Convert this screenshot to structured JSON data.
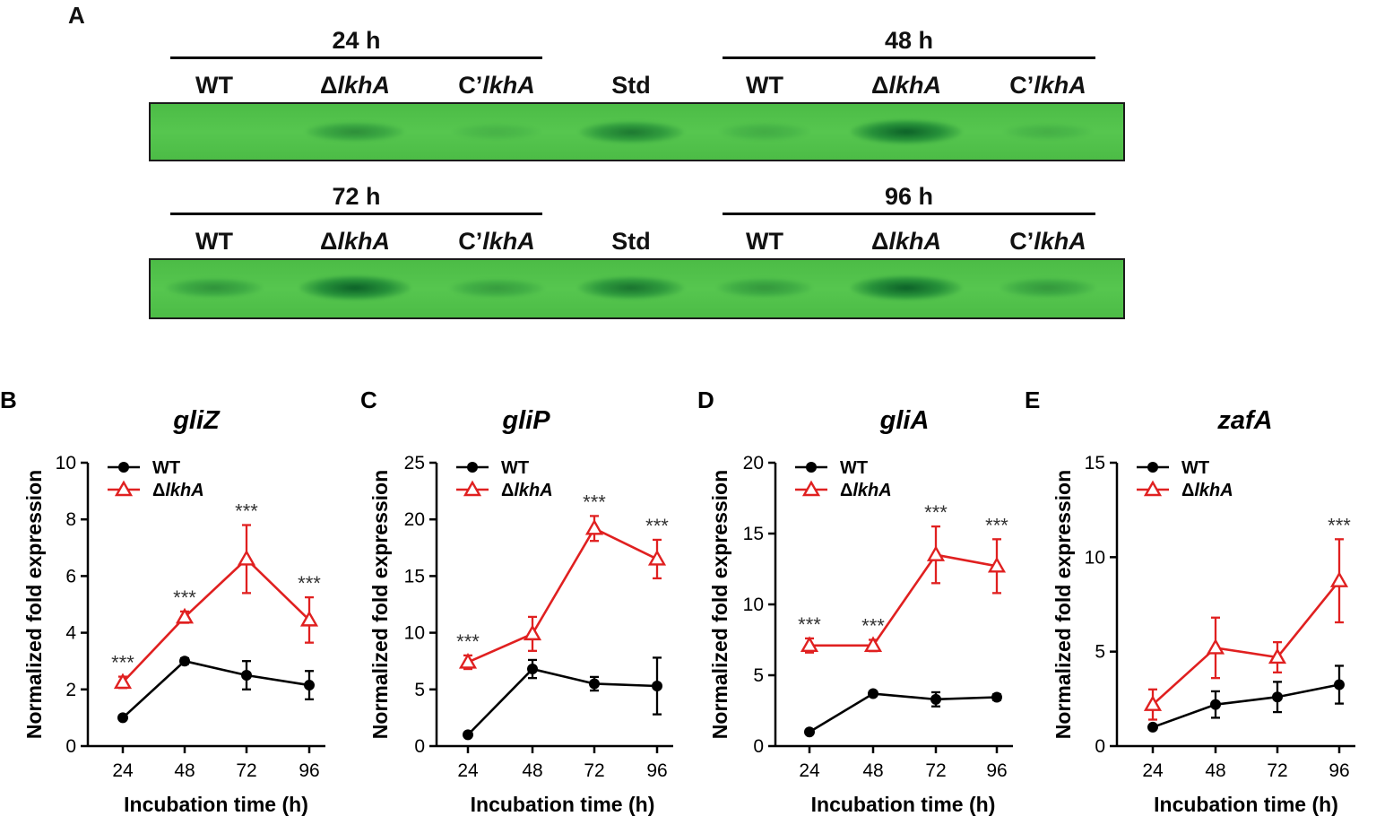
{
  "panel_a": {
    "letter": "A",
    "gels": [
      {
        "groups": [
          {
            "label": "24 h",
            "lanes": [
              "WT",
              "ΔlkhA",
              "C’lkhA"
            ]
          },
          {
            "label": "48 h",
            "lanes": [
              "WT",
              "ΔlkhA",
              "C’lkhA"
            ]
          }
        ],
        "std_label": "Std",
        "band_intensity": [
          0.0,
          0.45,
          0.05,
          0.7,
          0.12,
          0.95,
          0.08
        ]
      },
      {
        "groups": [
          {
            "label": "72 h",
            "lanes": [
              "WT",
              "ΔlkhA",
              "C’lkhA"
            ]
          },
          {
            "label": "96 h",
            "lanes": [
              "WT",
              "ΔlkhA",
              "C’lkhA"
            ]
          }
        ],
        "std_label": "Std",
        "band_intensity": [
          0.4,
          0.95,
          0.3,
          0.75,
          0.35,
          0.95,
          0.35
        ]
      }
    ]
  },
  "colors": {
    "wt": "#000000",
    "mutant": "#e02020",
    "gel": "#52c24b",
    "band": "#0a6a2a"
  },
  "chart_data": [
    {
      "panel": "B",
      "type": "line",
      "title": "gliZ",
      "xlabel": "Incubation time (h)",
      "ylabel": "Normalized fold expression",
      "categories": [
        "24",
        "48",
        "72",
        "96"
      ],
      "ylim": [
        0,
        10
      ],
      "yticks": [
        0,
        2,
        4,
        6,
        8,
        10
      ],
      "series": [
        {
          "name": "WT",
          "values": [
            1.0,
            3.0,
            2.5,
            2.15
          ],
          "errors": [
            0.05,
            0.1,
            0.5,
            0.5
          ]
        },
        {
          "name": "ΔlkhA",
          "values": [
            2.25,
            4.55,
            6.6,
            4.45
          ],
          "errors": [
            0.2,
            0.2,
            1.2,
            0.8
          ]
        }
      ],
      "annotations": [
        {
          "x": "24",
          "text": "***"
        },
        {
          "x": "48",
          "text": "***"
        },
        {
          "x": "72",
          "text": "***"
        },
        {
          "x": "96",
          "text": "***"
        }
      ]
    },
    {
      "panel": "C",
      "type": "line",
      "title": "gliP",
      "xlabel": "Incubation time (h)",
      "ylabel": "Normalized fold expression",
      "categories": [
        "24",
        "48",
        "72",
        "96"
      ],
      "ylim": [
        0,
        25
      ],
      "yticks": [
        0,
        5,
        10,
        15,
        20,
        25
      ],
      "series": [
        {
          "name": "WT",
          "values": [
            1.0,
            6.8,
            5.5,
            5.3
          ],
          "errors": [
            0.1,
            0.8,
            0.6,
            2.5
          ]
        },
        {
          "name": "ΔlkhA",
          "values": [
            7.4,
            9.9,
            19.2,
            16.5
          ],
          "errors": [
            0.6,
            1.5,
            1.1,
            1.7
          ]
        }
      ],
      "annotations": [
        {
          "x": "24",
          "text": "***"
        },
        {
          "x": "72",
          "text": "***"
        },
        {
          "x": "96",
          "text": "***"
        }
      ]
    },
    {
      "panel": "D",
      "type": "line",
      "title": "gliA",
      "xlabel": "Incubation time (h)",
      "ylabel": "Normalized fold expression",
      "categories": [
        "24",
        "48",
        "72",
        "96"
      ],
      "ylim": [
        0,
        20
      ],
      "yticks": [
        0,
        5,
        10,
        15,
        20
      ],
      "series": [
        {
          "name": "WT",
          "values": [
            1.0,
            3.7,
            3.3,
            3.45
          ],
          "errors": [
            0.05,
            0.15,
            0.5,
            0.2
          ]
        },
        {
          "name": "ΔlkhA",
          "values": [
            7.1,
            7.1,
            13.5,
            12.7
          ],
          "errors": [
            0.5,
            0.4,
            2.0,
            1.9
          ]
        }
      ],
      "annotations": [
        {
          "x": "24",
          "text": "***"
        },
        {
          "x": "48",
          "text": "***"
        },
        {
          "x": "72",
          "text": "***"
        },
        {
          "x": "96",
          "text": "***"
        }
      ]
    },
    {
      "panel": "E",
      "type": "line",
      "title": "zafA",
      "xlabel": "Incubation time (h)",
      "ylabel": "Normalized fold expression",
      "categories": [
        "24",
        "48",
        "72",
        "96"
      ],
      "ylim": [
        0,
        15
      ],
      "yticks": [
        0,
        5,
        10,
        15
      ],
      "series": [
        {
          "name": "WT",
          "values": [
            1.0,
            2.2,
            2.6,
            3.25
          ],
          "errors": [
            0.1,
            0.7,
            0.8,
            1.0
          ]
        },
        {
          "name": "ΔlkhA",
          "values": [
            2.2,
            5.2,
            4.7,
            8.75
          ],
          "errors": [
            0.8,
            1.6,
            0.8,
            2.2
          ]
        }
      ],
      "annotations": [
        {
          "x": "96",
          "text": "***"
        }
      ]
    }
  ]
}
